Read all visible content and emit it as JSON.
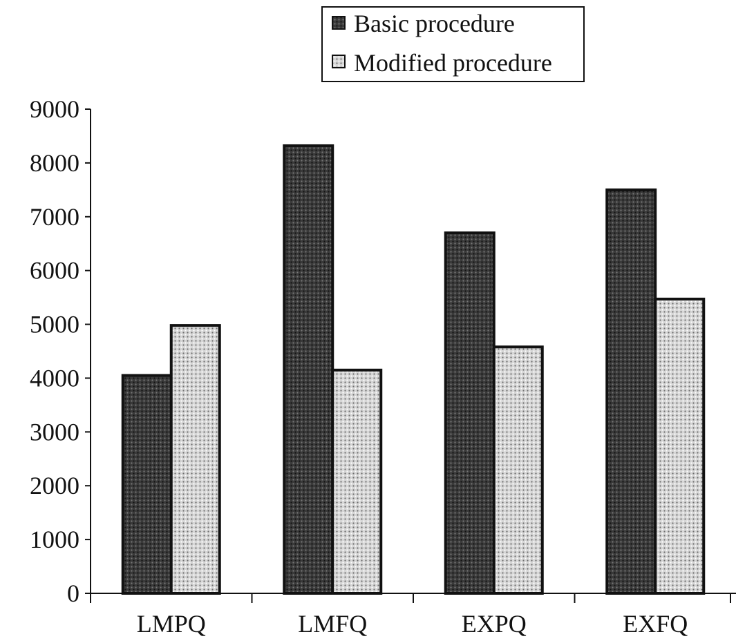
{
  "chart_data": {
    "type": "bar",
    "categories": [
      "LMPQ",
      "LMFQ",
      "EXPQ",
      "EXFQ"
    ],
    "series": [
      {
        "name": "Basic procedure",
        "values": [
          4050,
          8320,
          6700,
          7500
        ],
        "color": "#2e2e2e"
      },
      {
        "name": "Modified procedure",
        "values": [
          4980,
          4150,
          4580,
          5470
        ],
        "color": "#bdbdbd"
      }
    ],
    "yticks": [
      "0",
      "1000",
      "2000",
      "3000",
      "4000",
      "5000",
      "6000",
      "7000",
      "8000",
      "9000"
    ],
    "ylim": [
      0,
      9000
    ],
    "grid": false,
    "legend_position": "top-center"
  }
}
